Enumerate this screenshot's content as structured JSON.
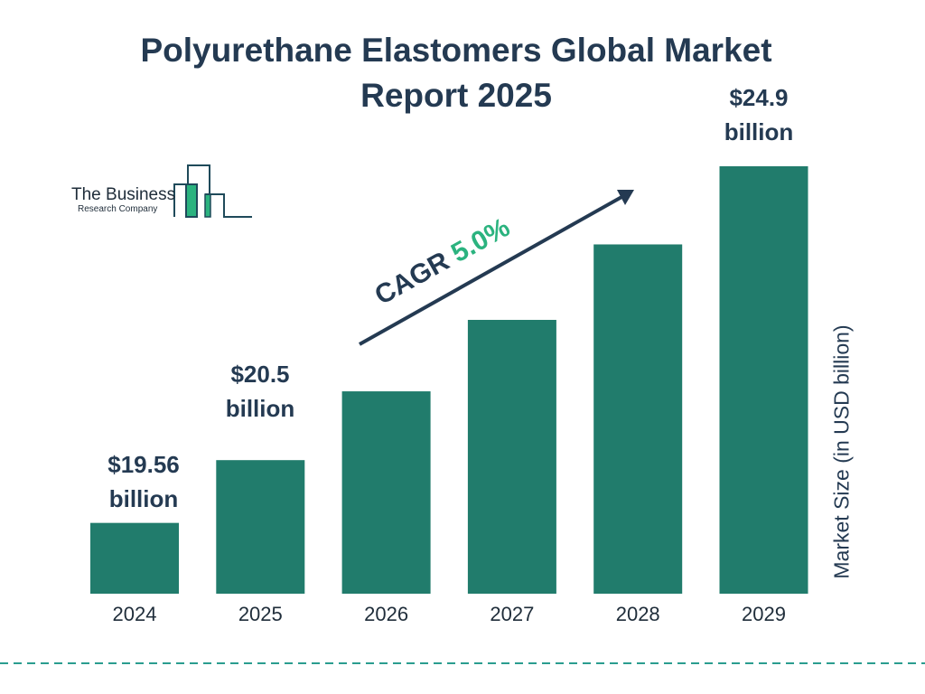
{
  "title_line1": "Polyurethane Elastomers Global Market",
  "title_line2": "Report 2025",
  "logo": {
    "name": "The Business",
    "sub": "Research Company"
  },
  "cagr": {
    "label": "CAGR",
    "value": "5.0%"
  },
  "labels": {
    "2024": "$19.56",
    "2025": "$20.5",
    "2029": "$24.9",
    "unit": "billion"
  },
  "chart_data": {
    "type": "bar",
    "title": "Polyurethane Elastomers Global Market Report 2025",
    "categories": [
      "2024",
      "2025",
      "2026",
      "2027",
      "2028",
      "2029"
    ],
    "values": [
      19.56,
      20.5,
      21.53,
      22.6,
      23.73,
      24.9
    ],
    "ylabel": "Market Size (in USD billion)",
    "ylim": [
      18.5,
      25
    ],
    "grid": false,
    "bar_color": "#217c6c",
    "accent_color": "#2bb37f",
    "text_color": "#243a52"
  }
}
